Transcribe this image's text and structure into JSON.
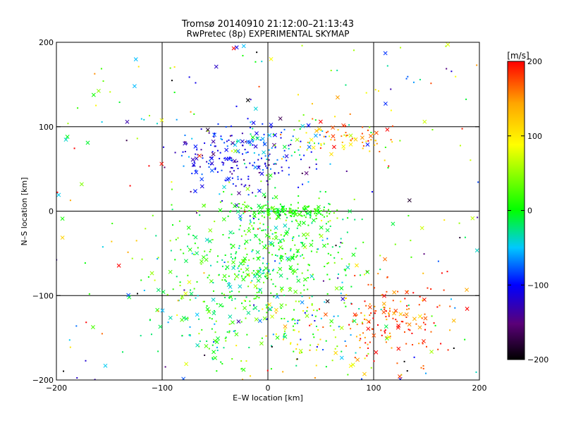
{
  "chart_data": {
    "type": "scatter",
    "title": "Tromsø 20140910 21:12:00–21:13:43",
    "subtitle": "RwPretec (8p) EXPERIMENTAL SKYMAP",
    "xlabel": "E–W location [km]",
    "ylabel": "N–S location [km]",
    "xlim": [
      -200,
      200
    ],
    "ylim": [
      -200,
      200
    ],
    "x_ticks": [
      -200,
      -100,
      0,
      100,
      200
    ],
    "y_ticks": [
      -200,
      -100,
      0,
      100,
      200
    ],
    "x_tick_labels": [
      "−200",
      "−100",
      "0",
      "100",
      "200"
    ],
    "y_tick_labels": [
      "−200",
      "−100",
      "0",
      "100",
      "200"
    ],
    "grid": true,
    "marker_types": [
      "dot",
      "x"
    ],
    "colorbar": {
      "label": "[m/s]",
      "range": [
        -200,
        200
      ],
      "ticks": [
        200,
        100,
        0,
        -100,
        -200
      ],
      "tick_labels": [
        "200",
        "100",
        "0",
        "−100",
        "−200"
      ],
      "colormap": [
        "#000000",
        "#5a0078",
        "#0000ff",
        "#00c8ff",
        "#00ff00",
        "#ffff00",
        "#ffa500",
        "#ff0000"
      ]
    },
    "clusters": [
      {
        "region": "north-west",
        "x_center": -35,
        "y_center": 60,
        "x_spread": 30,
        "y_spread": 22,
        "velocity": -105,
        "velocity_spread": 25,
        "count": 180
      },
      {
        "region": "north-centre",
        "x_center": 10,
        "y_center": 78,
        "x_spread": 22,
        "y_spread": 14,
        "velocity": -60,
        "velocity_spread": 35,
        "count": 70
      },
      {
        "region": "north-east",
        "x_center": 70,
        "y_center": 88,
        "x_spread": 22,
        "y_spread": 10,
        "velocity": 140,
        "velocity_spread": 45,
        "count": 70
      },
      {
        "region": "centre-band",
        "x_center": 20,
        "y_center": 0,
        "x_spread": 22,
        "y_spread": 5,
        "velocity": 10,
        "velocity_spread": 12,
        "count": 130
      },
      {
        "region": "centre",
        "x_center": 5,
        "y_center": -50,
        "x_spread": 40,
        "y_spread": 35,
        "velocity": 0,
        "velocity_spread": 30,
        "count": 420
      },
      {
        "region": "south-west",
        "x_center": -55,
        "y_center": -110,
        "x_spread": 35,
        "y_spread": 40,
        "velocity": 10,
        "velocity_spread": 30,
        "count": 140
      },
      {
        "region": "south-centre",
        "x_center": 40,
        "y_center": -140,
        "x_spread": 30,
        "y_spread": 30,
        "velocity": 30,
        "velocity_spread": 70,
        "count": 130
      },
      {
        "region": "south-east",
        "x_center": 115,
        "y_center": -125,
        "x_spread": 25,
        "y_spread": 25,
        "velocity": 180,
        "velocity_spread": 30,
        "count": 150
      },
      {
        "region": "scattered",
        "x_center": 0,
        "y_center": 0,
        "x_spread": 200,
        "y_spread": 200,
        "velocity": 0,
        "velocity_spread": 120,
        "count": 260
      }
    ]
  }
}
